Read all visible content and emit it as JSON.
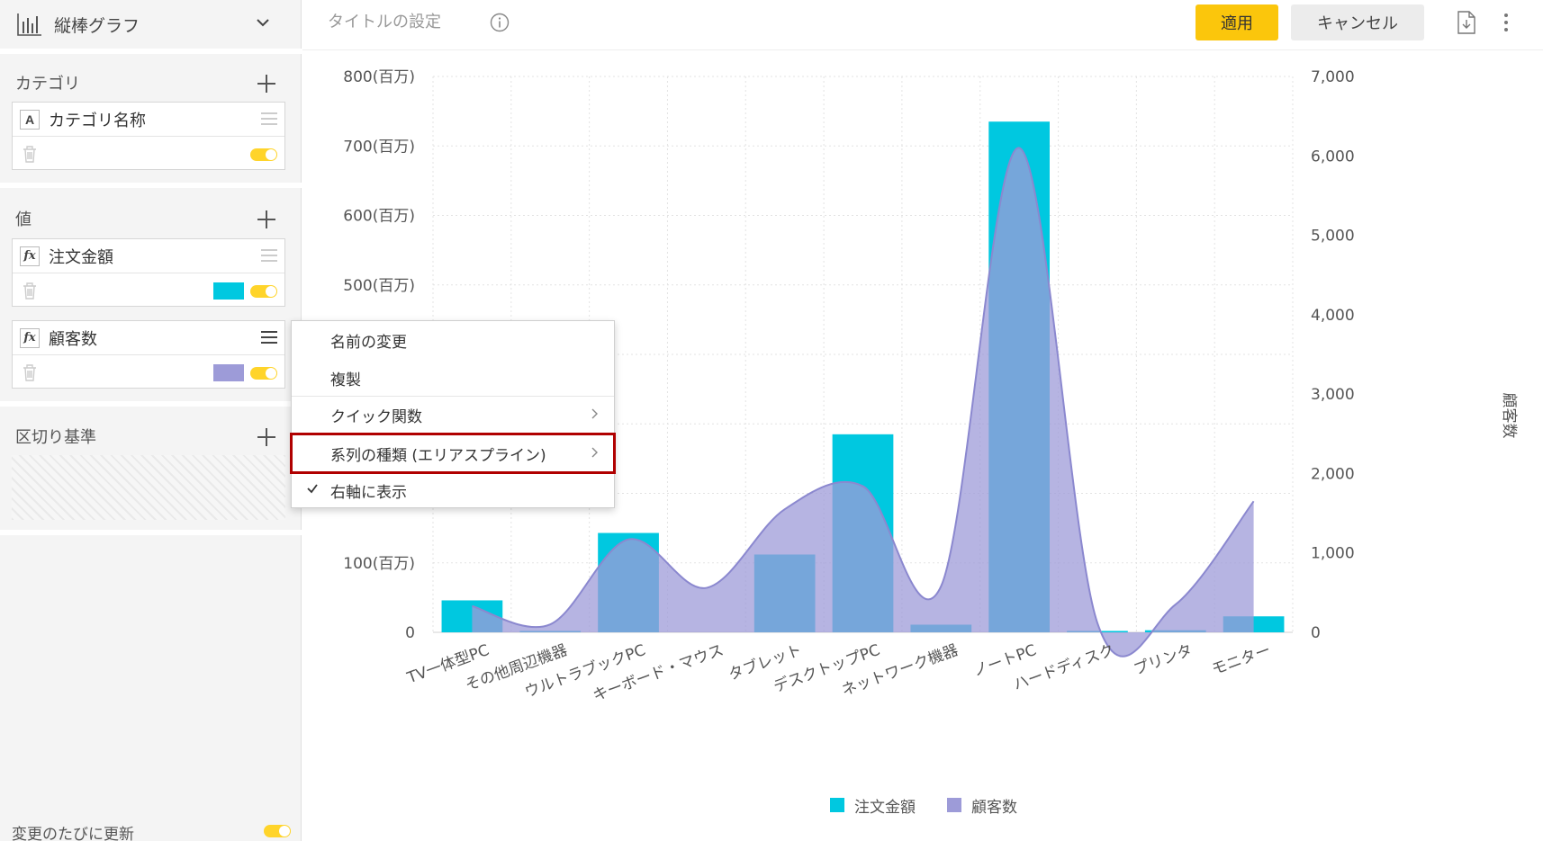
{
  "chart_type_selector": {
    "label": "縦棒グラフ",
    "icon": "bar-chart-icon"
  },
  "sections": {
    "category": {
      "title": "カテゴリ",
      "fields": [
        {
          "type_badge": "A",
          "name": "カテゴリ名称"
        }
      ]
    },
    "values": {
      "title": "値",
      "fields": [
        {
          "type_badge": "fx",
          "name": "注文金額",
          "color": "#00c8e0"
        },
        {
          "type_badge": "fx",
          "name": "顧客数",
          "color": "#9d9bd8"
        }
      ]
    },
    "split": {
      "title": "区切り基準"
    }
  },
  "auto_update": {
    "label": "変更のたびに更新",
    "enabled": true
  },
  "header": {
    "title_placeholder": "タイトルの設定",
    "apply_label": "適用",
    "cancel_label": "キャンセル"
  },
  "context_menu": {
    "items": [
      {
        "label": "名前の変更"
      },
      {
        "label": "複製"
      },
      {
        "label": "クイック関数",
        "submenu": true
      },
      {
        "label": "系列の種類 (エリアスプライン)",
        "submenu": true,
        "highlighted": true
      },
      {
        "label": "右軸に表示",
        "checked": true
      }
    ]
  },
  "chart_data": {
    "type": "bar",
    "categories": [
      "TV一体型PC",
      "その他周辺機器",
      "ウルトラブックPC",
      "キーボード・マウス",
      "タブレット",
      "デスクトップPC",
      "ネットワーク機器",
      "ノートPC",
      "ハードディスク",
      "プリンタ",
      "モニター"
    ],
    "series": [
      {
        "name": "注文金額",
        "type": "bar",
        "axis": "left",
        "color": "#00c8e0",
        "values": [
          46,
          2,
          143,
          0,
          112,
          285,
          11,
          735,
          2,
          3,
          23
        ]
      },
      {
        "name": "顧客数",
        "type": "areaspline",
        "axis": "right",
        "color": "#9d9bd8",
        "values": [
          330,
          100,
          1170,
          560,
          1550,
          1840,
          580,
          6100,
          120,
          350,
          1650
        ]
      }
    ],
    "y_left": {
      "min": 0,
      "max": 800,
      "ticks": [
        "0",
        "100(百万)",
        "200(百万)",
        "300(百万)",
        "400(百万)",
        "500(百万)",
        "600(百万)",
        "700(百万)",
        "800(百万)"
      ]
    },
    "y_right": {
      "min": 0,
      "max": 7000,
      "label": "顧客数",
      "ticks": [
        "0",
        "1,000",
        "2,000",
        "3,000",
        "4,000",
        "5,000",
        "6,000",
        "7,000"
      ]
    },
    "grid": true,
    "legend": "bottom"
  }
}
